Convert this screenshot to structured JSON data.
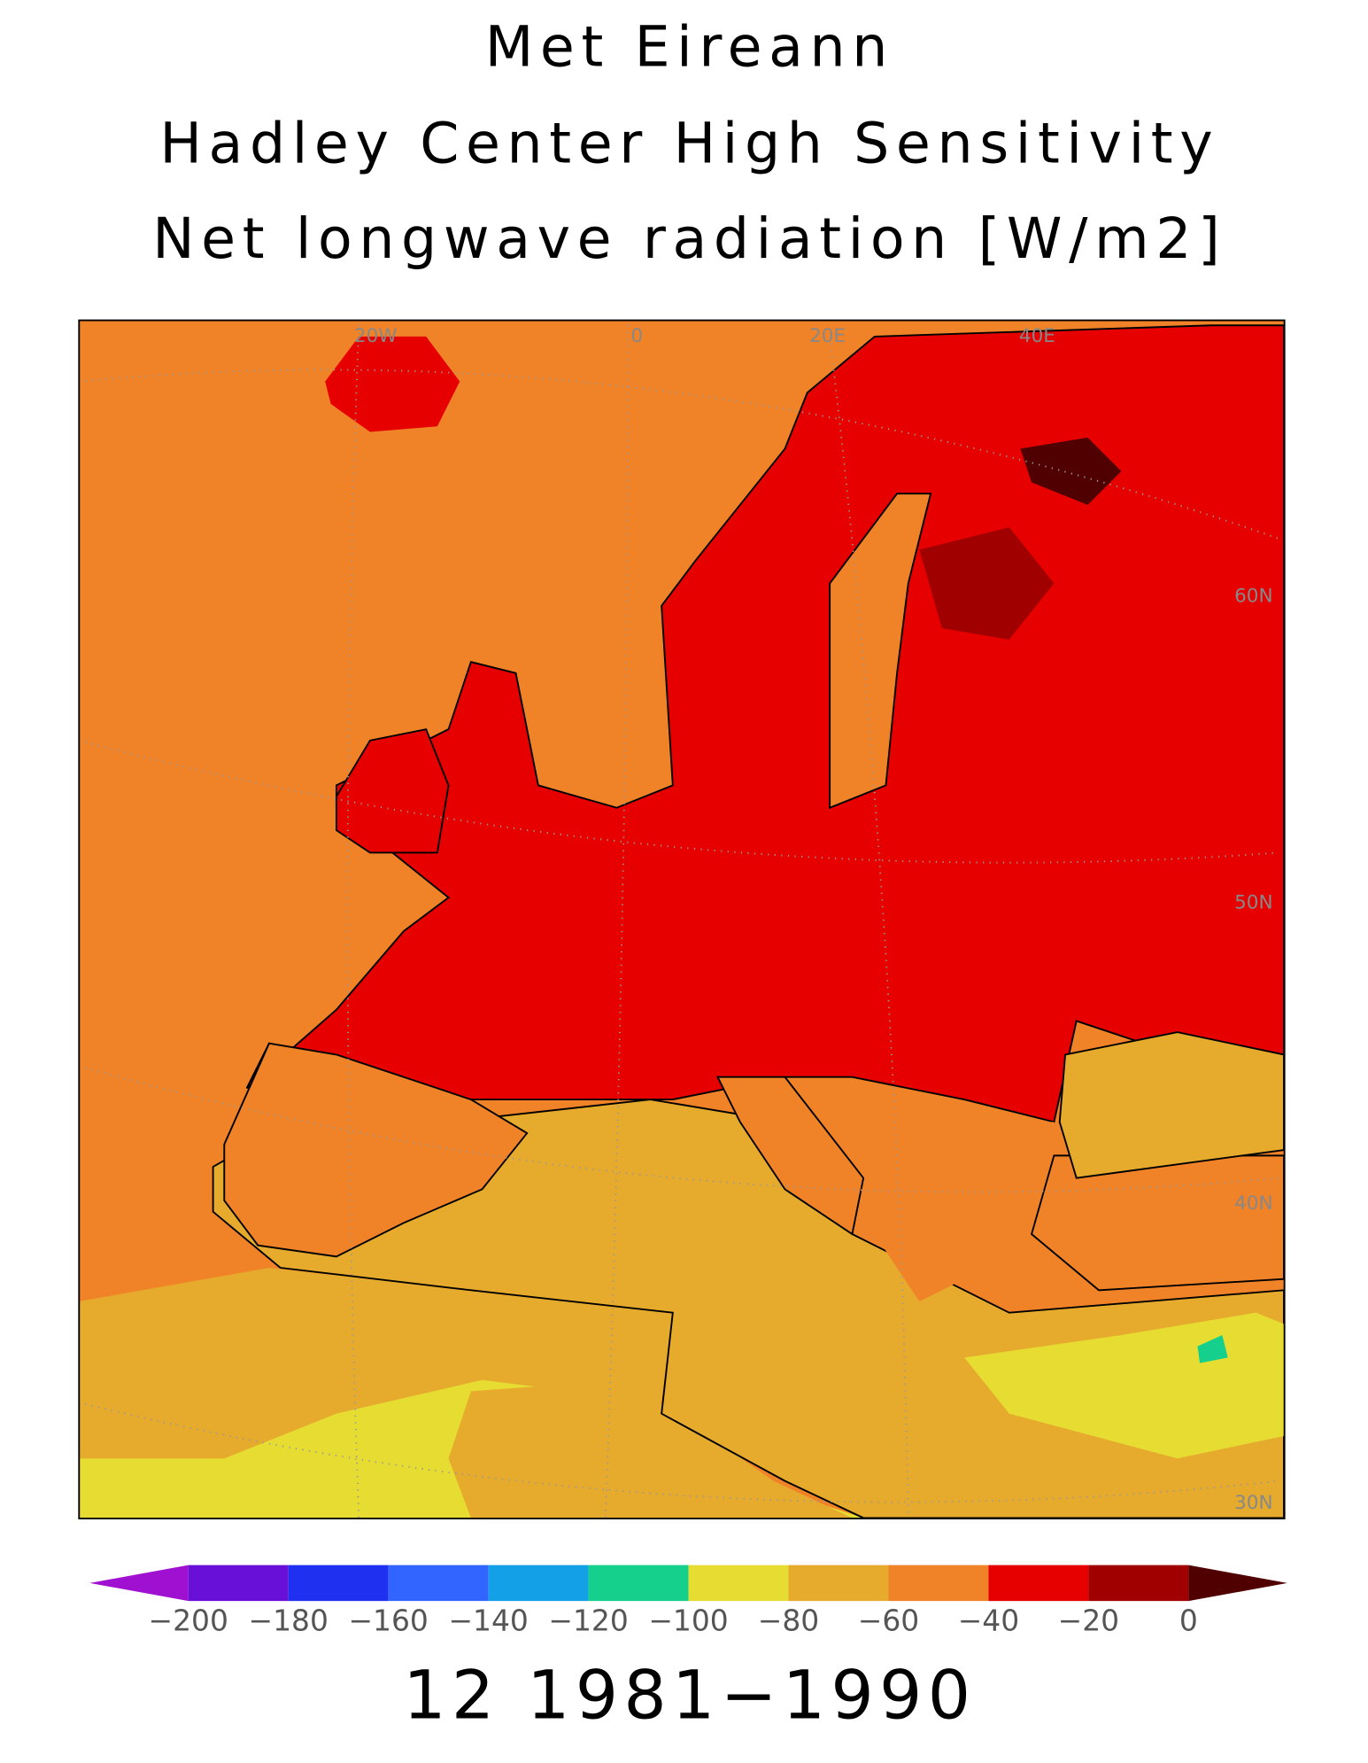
{
  "header": {
    "lines": [
      "Met Eireann",
      "Hadley Center High Sensitivity",
      "Net longwave radiation [W/m2]"
    ]
  },
  "map": {
    "graticule_labels": [
      "20W",
      "0",
      "20E",
      "40E",
      "60N",
      "50N",
      "40N",
      "30N"
    ]
  },
  "colorbar": {
    "ticks": [
      {
        "value": -200,
        "label": "−200"
      },
      {
        "value": -180,
        "label": "−180"
      },
      {
        "value": -160,
        "label": "−160"
      },
      {
        "value": -140,
        "label": "−140"
      },
      {
        "value": -120,
        "label": "−120"
      },
      {
        "value": -100,
        "label": "−100"
      },
      {
        "value": -80,
        "label": "−80"
      },
      {
        "value": -60,
        "label": "−60"
      },
      {
        "value": -40,
        "label": "−40"
      },
      {
        "value": -20,
        "label": "−20"
      },
      0
    ],
    "colors": [
      "#a010d0",
      "#6810d8",
      "#2030f0",
      "#3264ff",
      "#14a0e6",
      "#14d08c",
      "#e6dc32",
      "#e6aa2d",
      "#f08228",
      "#e60000",
      "#a00000",
      "#500000"
    ]
  },
  "footer": {
    "text": "12 1981−1990"
  }
}
